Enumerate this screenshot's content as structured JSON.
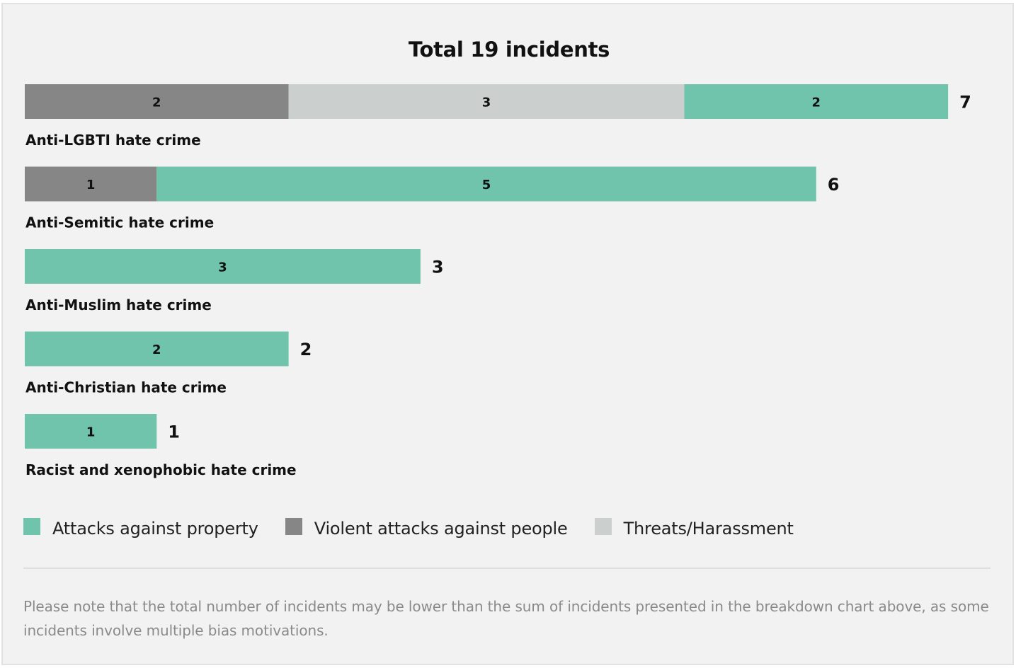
{
  "chart_data": {
    "type": "bar",
    "orientation": "horizontal",
    "stacked": true,
    "title": "Total 19 incidents",
    "categories": [
      "Anti-LGBTI hate crime",
      "Anti-Semitic hate crime",
      "Anti-Muslim hate crime",
      "Anti-Christian hate crime",
      "Racist and xenophobic hate crime"
    ],
    "series": [
      {
        "name": "Violent attacks against people",
        "color": "#868686",
        "values": [
          2,
          1,
          0,
          0,
          0
        ]
      },
      {
        "name": "Threats/Harassment",
        "color": "#cbcfcd",
        "values": [
          3,
          0,
          0,
          0,
          0
        ]
      },
      {
        "name": "Attacks against property",
        "color": "#6fc4ab",
        "values": [
          2,
          5,
          3,
          2,
          1
        ]
      }
    ],
    "totals": [
      7,
      6,
      3,
      2,
      1
    ],
    "xlim": [
      0,
      7
    ],
    "grid": false,
    "legend": {
      "position": "bottom-left",
      "items": [
        {
          "label": "Attacks against property",
          "color": "#6fc4ab"
        },
        {
          "label": "Violent attacks against people",
          "color": "#868686"
        },
        {
          "label": "Threats/Harassment",
          "color": "#cbcfcd"
        }
      ]
    }
  },
  "note": "Please note that the total number of incidents may be lower than the sum of incidents presented in the breakdown chart above, as some incidents involve multiple bias motivations."
}
